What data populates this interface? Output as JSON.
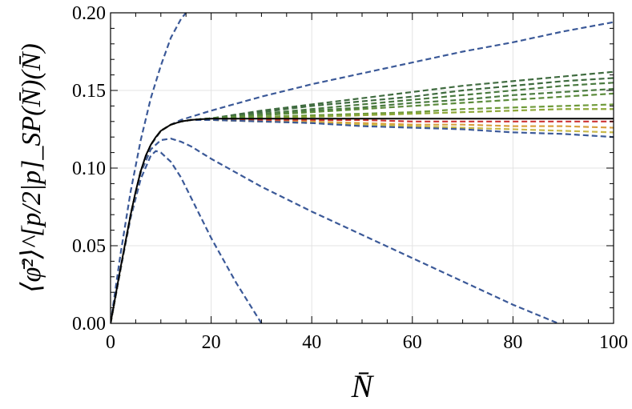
{
  "chart_data": {
    "type": "line",
    "title": "",
    "xlabel": "N̄",
    "ylabel": "⟨φ̄²⟩^[p/2|p]_SP(N̄)(N̄)",
    "xlim": [
      0,
      100
    ],
    "ylim": [
      0,
      0.2
    ],
    "x_ticks": [
      0,
      20,
      40,
      60,
      80,
      100
    ],
    "y_ticks": [
      0.0,
      0.05,
      0.1,
      0.15,
      0.2
    ],
    "x_tick_labels": [
      "0",
      "20",
      "40",
      "60",
      "80",
      "100"
    ],
    "y_tick_labels": [
      "0.00",
      "0.05",
      "0.10",
      "0.15",
      "0.20"
    ],
    "grid": true,
    "legend": "none",
    "colors": {
      "blue": "#3b5998",
      "green_dark": "#3f6b3f",
      "green": "#5a8a3a",
      "olive": "#8fa83a",
      "yellow": "#c9b94a",
      "orange": "#d9a040",
      "red": "#cc3333",
      "black": "#000000"
    },
    "series": [
      {
        "style": "dashed",
        "color": "#3b5998",
        "x": [
          0,
          2,
          4,
          6,
          8,
          10,
          12,
          14,
          15
        ],
        "y": [
          0,
          0.045,
          0.085,
          0.118,
          0.145,
          0.166,
          0.184,
          0.196,
          0.2
        ]
      },
      {
        "style": "dashed",
        "color": "#3b5998",
        "x": [
          0,
          2,
          4,
          6,
          8,
          9,
          10,
          12,
          14,
          16,
          20,
          25,
          30
        ],
        "y": [
          0,
          0.035,
          0.068,
          0.093,
          0.108,
          0.111,
          0.11,
          0.104,
          0.094,
          0.081,
          0.055,
          0.026,
          0.0
        ]
      },
      {
        "style": "dashed",
        "color": "#3b5998",
        "x": [
          0,
          2,
          4,
          6,
          8,
          10,
          12,
          14,
          16,
          20,
          30,
          40,
          50,
          60,
          70,
          80,
          89
        ],
        "y": [
          0,
          0.035,
          0.07,
          0.097,
          0.112,
          0.118,
          0.119,
          0.117,
          0.114,
          0.106,
          0.088,
          0.072,
          0.057,
          0.042,
          0.027,
          0.012,
          0.0
        ]
      },
      {
        "style": "dashed",
        "color": "#3b5998",
        "x": [
          0,
          2,
          4,
          6,
          8,
          10,
          12,
          14,
          16,
          20,
          30,
          40,
          50,
          60,
          70,
          80,
          90,
          100
        ],
        "y": [
          0,
          0.035,
          0.07,
          0.098,
          0.115,
          0.124,
          0.128,
          0.131,
          0.133,
          0.137,
          0.146,
          0.154,
          0.161,
          0.168,
          0.175,
          0.181,
          0.188,
          0.194
        ]
      },
      {
        "style": "dashed",
        "color": "#3f6b3f",
        "x": [
          0,
          2,
          4,
          6,
          8,
          10,
          12,
          14,
          16,
          20,
          30,
          40,
          50,
          60,
          70,
          80,
          90,
          100
        ],
        "y": [
          0,
          0.035,
          0.07,
          0.098,
          0.115,
          0.124,
          0.128,
          0.13,
          0.131,
          0.132,
          0.137,
          0.141,
          0.145,
          0.149,
          0.153,
          0.156,
          0.159,
          0.162
        ]
      },
      {
        "style": "dashed",
        "color": "#3f6b3f",
        "x": [
          0,
          2,
          4,
          6,
          8,
          10,
          12,
          14,
          16,
          20,
          30,
          40,
          50,
          60,
          70,
          80,
          90,
          100
        ],
        "y": [
          0,
          0.035,
          0.07,
          0.098,
          0.115,
          0.124,
          0.128,
          0.13,
          0.131,
          0.132,
          0.136,
          0.14,
          0.143,
          0.146,
          0.15,
          0.153,
          0.156,
          0.158
        ]
      },
      {
        "style": "dashed",
        "color": "#4a7a40",
        "x": [
          0,
          2,
          4,
          6,
          8,
          10,
          12,
          14,
          16,
          20,
          30,
          40,
          50,
          60,
          70,
          80,
          90,
          100
        ],
        "y": [
          0,
          0.035,
          0.07,
          0.098,
          0.115,
          0.124,
          0.128,
          0.13,
          0.131,
          0.132,
          0.135,
          0.138,
          0.141,
          0.144,
          0.147,
          0.15,
          0.153,
          0.155
        ]
      },
      {
        "style": "dashed",
        "color": "#4a7a40",
        "x": [
          0,
          2,
          4,
          6,
          8,
          10,
          12,
          14,
          16,
          20,
          30,
          40,
          50,
          60,
          70,
          80,
          90,
          100
        ],
        "y": [
          0,
          0.035,
          0.07,
          0.098,
          0.115,
          0.124,
          0.128,
          0.13,
          0.131,
          0.132,
          0.134,
          0.137,
          0.139,
          0.142,
          0.144,
          0.147,
          0.149,
          0.151
        ]
      },
      {
        "style": "dashed",
        "color": "#5a8a3a",
        "x": [
          0,
          2,
          4,
          6,
          8,
          10,
          12,
          14,
          16,
          20,
          30,
          40,
          50,
          60,
          70,
          80,
          90,
          100
        ],
        "y": [
          0,
          0.035,
          0.07,
          0.098,
          0.115,
          0.124,
          0.128,
          0.13,
          0.131,
          0.132,
          0.134,
          0.136,
          0.138,
          0.14,
          0.142,
          0.144,
          0.146,
          0.148
        ]
      },
      {
        "style": "dashed",
        "color": "#6e9a3a",
        "x": [
          0,
          2,
          4,
          6,
          8,
          10,
          12,
          14,
          16,
          20,
          30,
          40,
          50,
          60,
          70,
          80,
          90,
          100
        ],
        "y": [
          0,
          0.035,
          0.07,
          0.098,
          0.115,
          0.124,
          0.128,
          0.13,
          0.131,
          0.131,
          0.133,
          0.134,
          0.135,
          0.136,
          0.138,
          0.139,
          0.14,
          0.141
        ]
      },
      {
        "style": "dashed",
        "color": "#8fa83a",
        "x": [
          0,
          2,
          4,
          6,
          8,
          10,
          12,
          14,
          16,
          20,
          30,
          40,
          50,
          60,
          70,
          80,
          90,
          100
        ],
        "y": [
          0,
          0.035,
          0.07,
          0.098,
          0.115,
          0.124,
          0.128,
          0.13,
          0.131,
          0.131,
          0.132,
          0.133,
          0.134,
          0.135,
          0.136,
          0.137,
          0.138,
          0.138
        ]
      },
      {
        "style": "dashed",
        "color": "#cc3333",
        "x": [
          0,
          2,
          4,
          6,
          8,
          10,
          12,
          14,
          16,
          20,
          30,
          40,
          50,
          60,
          70,
          80,
          90,
          100
        ],
        "y": [
          0,
          0.035,
          0.07,
          0.098,
          0.115,
          0.124,
          0.128,
          0.13,
          0.131,
          0.131,
          0.131,
          0.131,
          0.131,
          0.13,
          0.13,
          0.13,
          0.13,
          0.13
        ]
      },
      {
        "style": "dashed",
        "color": "#d9a040",
        "x": [
          0,
          2,
          4,
          6,
          8,
          10,
          12,
          14,
          16,
          20,
          30,
          40,
          50,
          60,
          70,
          80,
          90,
          100
        ],
        "y": [
          0,
          0.035,
          0.07,
          0.098,
          0.115,
          0.124,
          0.128,
          0.13,
          0.131,
          0.131,
          0.13,
          0.13,
          0.129,
          0.128,
          0.128,
          0.127,
          0.127,
          0.126
        ]
      },
      {
        "style": "dashed",
        "color": "#c9b94a",
        "x": [
          0,
          2,
          4,
          6,
          8,
          10,
          12,
          14,
          16,
          20,
          30,
          40,
          50,
          60,
          70,
          80,
          90,
          100
        ],
        "y": [
          0,
          0.035,
          0.07,
          0.098,
          0.115,
          0.124,
          0.128,
          0.13,
          0.131,
          0.131,
          0.13,
          0.129,
          0.128,
          0.127,
          0.126,
          0.125,
          0.124,
          0.123
        ]
      },
      {
        "style": "dashed",
        "color": "#3b5998",
        "x": [
          0,
          2,
          4,
          6,
          8,
          10,
          12,
          14,
          16,
          20,
          30,
          40,
          50,
          60,
          70,
          80,
          90,
          100
        ],
        "y": [
          0,
          0.035,
          0.07,
          0.098,
          0.115,
          0.124,
          0.128,
          0.13,
          0.131,
          0.131,
          0.13,
          0.129,
          0.127,
          0.126,
          0.125,
          0.123,
          0.122,
          0.12
        ]
      },
      {
        "style": "solid",
        "color": "#000000",
        "x": [
          0,
          1,
          2,
          3,
          4,
          5,
          6,
          7,
          8,
          9,
          10,
          12,
          14,
          16,
          18,
          20,
          30,
          40,
          60,
          80,
          100
        ],
        "y": [
          0,
          0.018,
          0.036,
          0.053,
          0.07,
          0.085,
          0.098,
          0.108,
          0.115,
          0.12,
          0.124,
          0.128,
          0.13,
          0.131,
          0.1315,
          0.1318,
          0.1318,
          0.1318,
          0.1318,
          0.1318,
          0.1318
        ]
      }
    ]
  }
}
